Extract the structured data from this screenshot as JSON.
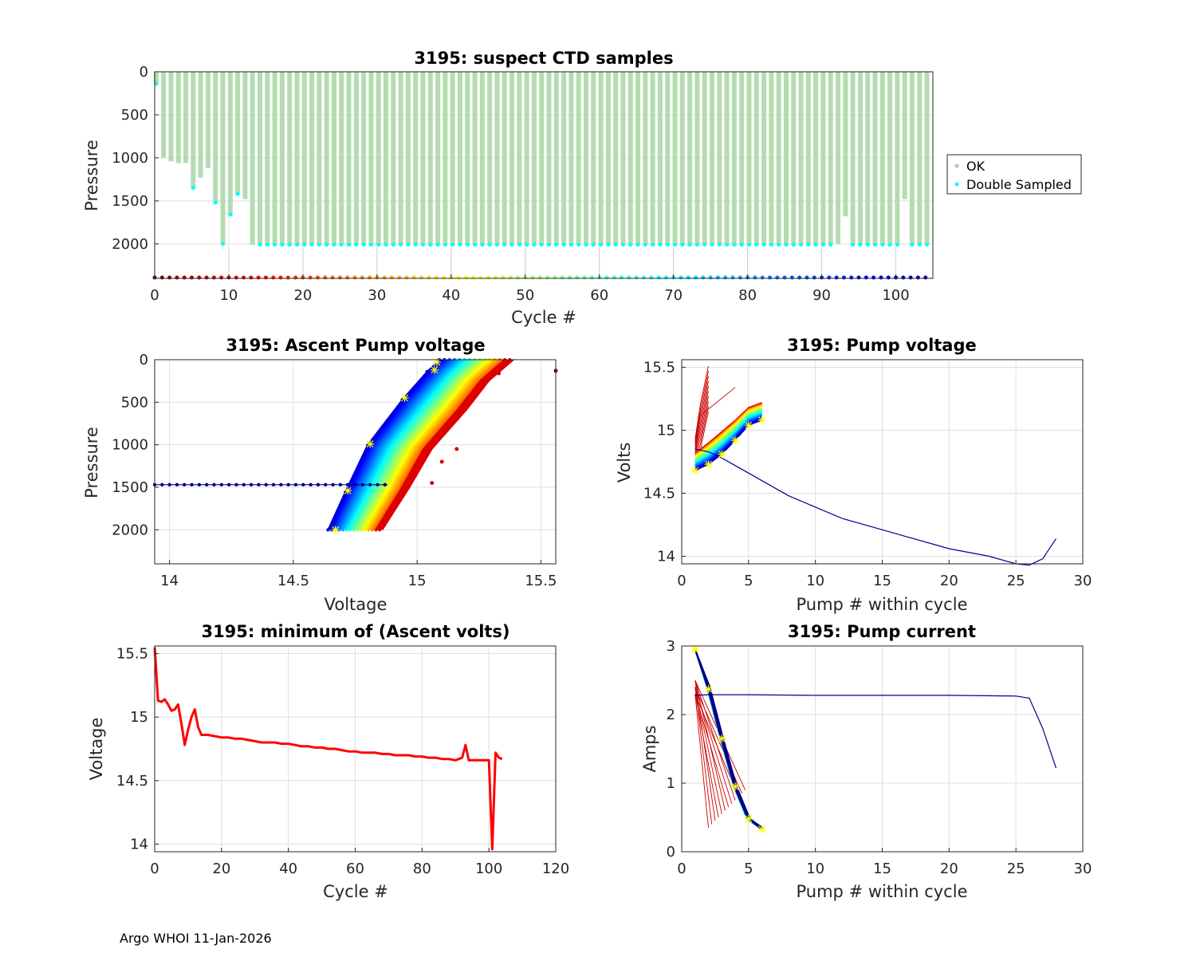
{
  "footer": "Argo WHOI 11-Jan-2026",
  "colors": {
    "ok": "#b5dbb0",
    "ok_marker": "#c0c0c0",
    "double_sampled": "#00ffff",
    "red": "#ff0000",
    "navy": "#00008b"
  },
  "chart_data": [
    {
      "id": "ctd",
      "type": "bar",
      "title": "3195: suspect CTD samples",
      "xlabel": "Cycle #",
      "ylabel": "Pressure",
      "xlim": [
        0,
        105
      ],
      "ylim": [
        2400,
        0
      ],
      "xticks": [
        "0",
        "10",
        "20",
        "30",
        "40",
        "50",
        "60",
        "70",
        "80",
        "90",
        "100"
      ],
      "yticks": [
        "0",
        "500",
        "1000",
        "1500",
        "2000"
      ],
      "legend": {
        "position": "outside-right",
        "entries": [
          "OK",
          "Double Sampled"
        ]
      },
      "profiles": [
        {
          "cycle": 0,
          "depth": 140,
          "double": true
        },
        {
          "cycle": 1,
          "depth": 1000
        },
        {
          "cycle": 2,
          "depth": 1040
        },
        {
          "cycle": 3,
          "depth": 1060
        },
        {
          "cycle": 4,
          "depth": 1060
        },
        {
          "cycle": 5,
          "depth": 1350,
          "double": true
        },
        {
          "cycle": 6,
          "depth": 1230
        },
        {
          "cycle": 7,
          "depth": 1120
        },
        {
          "cycle": 8,
          "depth": 1520,
          "double": true
        },
        {
          "cycle": 9,
          "depth": 2000,
          "double": true
        },
        {
          "cycle": 10,
          "depth": 1660,
          "double": true
        },
        {
          "cycle": 11,
          "depth": 1420,
          "double": true
        },
        {
          "cycle": 12,
          "depth": 1480
        },
        {
          "cycle": 13,
          "depth": 2010
        },
        {
          "from": 14,
          "to": 91,
          "depth": 2010,
          "double": true
        },
        {
          "cycle": 92,
          "depth": 2000
        },
        {
          "cycle": 93,
          "depth": 1680
        },
        {
          "from": 94,
          "to": 100,
          "depth": 2010,
          "double": true
        },
        {
          "cycle": 101,
          "depth": 1480
        },
        {
          "from": 102,
          "to": 104,
          "depth": 2010,
          "double": true
        }
      ]
    },
    {
      "id": "ascent",
      "type": "line",
      "title": "3195: Ascent Pump voltage",
      "xlabel": "Voltage",
      "ylabel": "Pressure",
      "xlim": [
        13.94,
        15.56
      ],
      "ylim": [
        2400,
        0
      ],
      "xticks": [
        "14",
        "14.5",
        "15",
        "15.5"
      ],
      "yticks": [
        "0",
        "500",
        "1000",
        "1500",
        "2000"
      ],
      "series": [
        {
          "name": "blue-envelope",
          "x": [
            14.64,
            14.71,
            14.8,
            14.94,
            15.04,
            15.09
          ],
          "y": [
            2000,
            1550,
            1000,
            470,
            140,
            0
          ]
        },
        {
          "name": "red-envelope",
          "x": [
            14.86,
            14.97,
            15.06,
            15.2,
            15.29,
            15.39
          ],
          "y": [
            2000,
            1500,
            1050,
            590,
            250,
            0
          ]
        },
        {
          "name": "cycle-1-horizontal",
          "x": [
            13.94,
            14.88
          ],
          "y": [
            1470,
            1470
          ]
        },
        {
          "name": "outlier-point",
          "x": [
            15.56
          ],
          "y": [
            130
          ]
        }
      ],
      "yellow_markers": {
        "x": [
          14.67,
          14.72,
          14.81,
          14.95,
          15.07,
          15.08
        ],
        "y": [
          2000,
          1540,
          990,
          450,
          120,
          30
        ]
      }
    },
    {
      "id": "pumpv",
      "type": "line",
      "title": "3195: Pump voltage",
      "xlabel": "Pump # within cycle",
      "ylabel": "Volts",
      "xlim": [
        0,
        30
      ],
      "ylim": [
        13.94,
        15.56
      ],
      "xticks": [
        "0",
        "5",
        "10",
        "15",
        "20",
        "25",
        "30"
      ],
      "yticks": [
        "14",
        "14.5",
        "15",
        "15.5"
      ],
      "series": [
        {
          "name": "long-cycle",
          "x": [
            1,
            2,
            3,
            5,
            8,
            12,
            16,
            20,
            23,
            25,
            26,
            27,
            28
          ],
          "y": [
            14.85,
            14.83,
            14.78,
            14.66,
            14.48,
            14.3,
            14.18,
            14.06,
            14.0,
            13.94,
            13.93,
            13.98,
            14.14
          ]
        },
        {
          "name": "navy-cycles",
          "x": [
            1,
            2,
            3,
            4,
            5,
            6
          ],
          "y": [
            14.68,
            14.73,
            14.81,
            14.92,
            15.04,
            15.08
          ]
        },
        {
          "name": "yellow-cycles",
          "x": [
            1,
            2,
            3,
            4,
            5,
            6
          ],
          "y": [
            14.82,
            14.9,
            14.99,
            15.08,
            15.18,
            15.22
          ]
        },
        {
          "name": "red-cycles",
          "x": [
            1,
            2
          ],
          "y": [
            14.85,
            15.35
          ]
        }
      ]
    },
    {
      "id": "minv",
      "type": "line",
      "title": "3195: minimum of (Ascent volts)",
      "xlabel": "Cycle #",
      "ylabel": "Voltage",
      "xlim": [
        0,
        120
      ],
      "ylim": [
        13.94,
        15.56
      ],
      "xticks": [
        "0",
        "20",
        "40",
        "60",
        "80",
        "100",
        "120"
      ],
      "yticks": [
        "14",
        "14.5",
        "15",
        "15.5"
      ],
      "series": [
        {
          "name": "min-ascent-volts",
          "x": [
            0,
            1,
            2,
            3,
            4,
            5,
            6,
            7,
            8,
            9,
            10,
            11,
            12,
            13,
            14,
            16,
            18,
            20,
            22,
            24,
            26,
            28,
            30,
            32,
            34,
            36,
            38,
            40,
            42,
            44,
            46,
            48,
            50,
            52,
            54,
            56,
            58,
            60,
            62,
            64,
            66,
            68,
            70,
            72,
            74,
            76,
            78,
            80,
            82,
            84,
            86,
            88,
            90,
            92,
            93,
            94,
            96,
            98,
            99,
            100,
            101,
            102,
            103,
            104
          ],
          "y": [
            15.55,
            15.13,
            15.12,
            15.14,
            15.1,
            15.05,
            15.06,
            15.1,
            14.95,
            14.78,
            14.9,
            15.0,
            15.06,
            14.92,
            14.86,
            14.86,
            14.85,
            14.84,
            14.84,
            14.83,
            14.83,
            14.82,
            14.81,
            14.8,
            14.8,
            14.8,
            14.79,
            14.79,
            14.78,
            14.77,
            14.77,
            14.76,
            14.76,
            14.75,
            14.75,
            14.74,
            14.73,
            14.73,
            14.72,
            14.72,
            14.72,
            14.71,
            14.71,
            14.7,
            14.7,
            14.7,
            14.69,
            14.69,
            14.68,
            14.68,
            14.67,
            14.67,
            14.66,
            14.68,
            14.78,
            14.66,
            14.66,
            14.66,
            14.66,
            14.66,
            13.96,
            14.72,
            14.68,
            14.67
          ]
        }
      ]
    },
    {
      "id": "pumpi",
      "type": "line",
      "title": "3195: Pump current",
      "xlabel": "Pump # within cycle",
      "ylabel": "Amps",
      "xlim": [
        0,
        30
      ],
      "ylim": [
        0,
        3
      ],
      "xticks": [
        "0",
        "5",
        "10",
        "15",
        "20",
        "25",
        "30"
      ],
      "yticks": [
        "0",
        "1",
        "2",
        "3"
      ],
      "series": [
        {
          "name": "long-cycle",
          "x": [
            1,
            2,
            5,
            10,
            15,
            20,
            25,
            26,
            27,
            28
          ],
          "y": [
            2.28,
            2.29,
            2.29,
            2.28,
            2.28,
            2.28,
            2.27,
            2.24,
            1.8,
            1.22
          ]
        },
        {
          "name": "navy-cycles",
          "x": [
            1,
            2,
            3,
            4,
            5,
            6
          ],
          "y": [
            2.95,
            2.4,
            1.65,
            0.95,
            0.48,
            0.34
          ]
        },
        {
          "name": "red-cycles",
          "x": [
            1,
            2.1
          ],
          "y": [
            2.3,
            0.35
          ]
        }
      ],
      "yellow_markers": {
        "x": [
          1,
          2,
          3,
          4,
          5,
          6
        ],
        "y": [
          2.95,
          2.37,
          1.65,
          0.95,
          0.48,
          0.33
        ]
      }
    }
  ]
}
